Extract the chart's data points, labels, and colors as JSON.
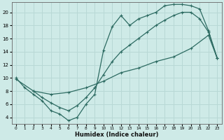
{
  "bg_color": "#ceeae7",
  "grid_color": "#b8d8d5",
  "line_color": "#2d6b62",
  "xlabel": "Humidex (Indice chaleur)",
  "xlim": [
    -0.5,
    23.5
  ],
  "ylim": [
    3,
    21.5
  ],
  "xticks": [
    0,
    1,
    2,
    3,
    4,
    5,
    6,
    7,
    8,
    9,
    10,
    11,
    12,
    13,
    14,
    15,
    16,
    17,
    18,
    19,
    20,
    21,
    22,
    23
  ],
  "yticks": [
    4,
    6,
    8,
    10,
    12,
    14,
    16,
    18,
    20
  ],
  "curve1_x": [
    0,
    1,
    2,
    3,
    4,
    5,
    6,
    7,
    8,
    9,
    10,
    11,
    12,
    13,
    14,
    15,
    16,
    17,
    18,
    19,
    20,
    21,
    22,
    23
  ],
  "curve1_y": [
    10,
    8.5,
    7.5,
    6.5,
    5.0,
    4.5,
    3.5,
    4.0,
    6.0,
    7.5,
    14.2,
    17.8,
    19.5,
    18.0,
    19.0,
    19.5,
    20.0,
    21.0,
    21.2,
    21.2,
    21.0,
    20.5,
    17.2,
    13.0
  ],
  "curve2_x": [
    0,
    2,
    4,
    6,
    8,
    10,
    12,
    14,
    16,
    18,
    20,
    22,
    23
  ],
  "curve2_y": [
    9.8,
    8.0,
    7.5,
    7.8,
    8.5,
    9.5,
    10.8,
    11.5,
    12.5,
    13.2,
    14.5,
    16.5,
    13.0
  ],
  "curve3_x": [
    2,
    3,
    4,
    5,
    6,
    7,
    8,
    9,
    10,
    11,
    12,
    13,
    14,
    15,
    16,
    17,
    18,
    19,
    20,
    21,
    22,
    23
  ],
  "curve3_y": [
    8.0,
    7.0,
    6.2,
    5.5,
    5.0,
    5.8,
    7.0,
    8.5,
    10.5,
    12.5,
    14.0,
    15.0,
    16.0,
    17.0,
    18.0,
    18.8,
    19.5,
    20.0,
    20.0,
    19.0,
    17.0,
    13.0
  ]
}
